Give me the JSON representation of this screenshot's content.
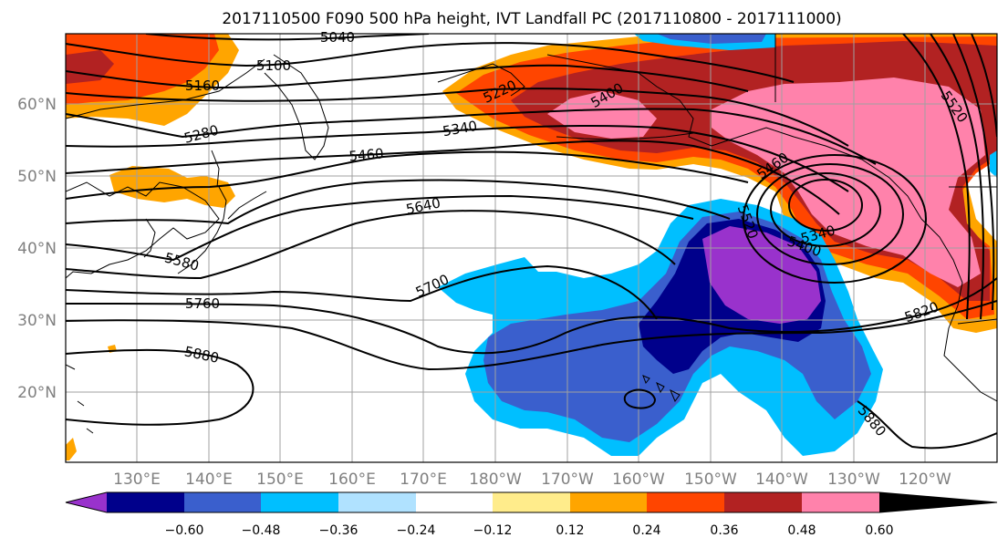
{
  "title": "2017110500 F090 500 hPa height, IVT Landfall PC (2017110800 - 2017111000)",
  "map": {
    "lat_labels": [
      "60°N",
      "50°N",
      "40°N",
      "30°N",
      "20°N"
    ],
    "lon_labels": [
      "130°E",
      "140°E",
      "150°E",
      "160°E",
      "170°E",
      "180°W",
      "170°W",
      "160°W",
      "150°W",
      "140°W",
      "130°W",
      "120°W"
    ]
  },
  "contours": {
    "units": "m",
    "labels": [
      "5040",
      "5100",
      "5160",
      "5220",
      "5280",
      "5340",
      "5400",
      "5460",
      "5520",
      "5580",
      "5640",
      "5700",
      "5760",
      "5820",
      "5880",
      "5340",
      "5400",
      "5460",
      "5520",
      "5880"
    ]
  },
  "colorbar": {
    "tick_labels": [
      "−0.60",
      "−0.48",
      "−0.36",
      "−0.24",
      "−0.12",
      "0.12",
      "0.24",
      "0.36",
      "0.48",
      "0.60"
    ],
    "colors": [
      "#9932cc",
      "#00008b",
      "#3a5fcd",
      "#00bfff",
      "#b0e2ff",
      "#ffffff",
      "#ffec8b",
      "#ffa500",
      "#ff4500",
      "#b22222",
      "#ff82ab"
    ]
  }
}
